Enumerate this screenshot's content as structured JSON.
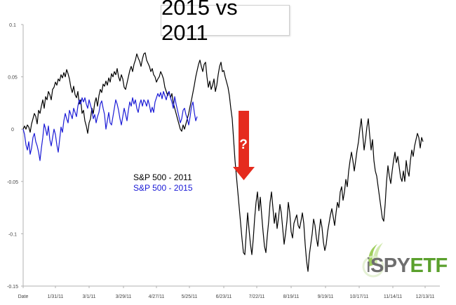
{
  "chart_data": {
    "type": "line",
    "title": "2015 vs 2011",
    "xlabel": "",
    "ylabel": "",
    "x_ticks": [
      "Date",
      "1/31/11",
      "3/1/11",
      "3/29/11",
      "4/27/11",
      "5/25/11",
      "6/23/11",
      "7/22/11",
      "8/19/11",
      "9/19/11",
      "10/17/11",
      "11/14/11",
      "12/13/11"
    ],
    "y_ticks": [
      "0.1",
      "0.05",
      "0",
      "-0.05",
      "-0.1",
      "-0.15"
    ],
    "ylim": [
      -0.15,
      0.1
    ],
    "grid": false,
    "legend_position": "center-left",
    "series": [
      {
        "name": "S&P 500 - 2011",
        "color": "#000000",
        "step": 0.7,
        "start": 0,
        "values": [
          0.0,
          0.003,
          0.0,
          0.004,
          0.002,
          -0.003,
          0.005,
          0.01,
          0.015,
          0.012,
          0.005,
          0.018,
          0.015,
          0.022,
          0.028,
          0.02,
          0.031,
          0.028,
          0.036,
          0.033,
          0.028,
          0.038,
          0.04,
          0.045,
          0.042,
          0.048,
          0.046,
          0.052,
          0.049,
          0.054,
          0.05,
          0.057,
          0.053,
          0.048,
          0.04,
          0.035,
          0.041,
          0.033,
          0.03,
          0.036,
          0.024,
          0.028,
          0.015,
          0.018,
          0.008,
          0.003,
          -0.004,
          0.006,
          0.01,
          0.02,
          0.015,
          0.025,
          0.03,
          0.022,
          0.032,
          0.038,
          0.035,
          0.043,
          0.041,
          0.046,
          0.042,
          0.049,
          0.045,
          0.053,
          0.05,
          0.055,
          0.052,
          0.058,
          0.05,
          0.046,
          0.052,
          0.048,
          0.04,
          0.038,
          0.044,
          0.05,
          0.056,
          0.06,
          0.055,
          0.062,
          0.066,
          0.072,
          0.068,
          0.065,
          0.06,
          0.067,
          0.072,
          0.073,
          0.066,
          0.063,
          0.06,
          0.055,
          0.058,
          0.052,
          0.05,
          0.045,
          0.048,
          0.05,
          0.055,
          0.052,
          0.048,
          0.04,
          0.036,
          0.032,
          0.036,
          0.03,
          0.034,
          0.025,
          0.02,
          0.015,
          0.01,
          0.005,
          0.0,
          -0.002,
          0.004,
          0.0,
          0.005,
          0.01,
          0.015,
          0.022,
          0.028,
          0.035,
          0.042,
          0.05,
          0.056,
          0.062,
          0.066,
          0.06,
          0.055,
          0.062,
          0.064,
          0.05,
          0.04,
          0.046,
          0.038,
          0.042,
          0.048,
          0.036,
          0.042,
          0.052,
          0.06,
          0.064,
          0.055,
          0.056,
          0.05,
          0.045,
          0.04,
          0.032,
          0.02,
          0.01,
          -0.01,
          -0.03,
          -0.045,
          -0.06,
          -0.075,
          -0.09,
          -0.105,
          -0.118,
          -0.12,
          -0.1,
          -0.08,
          -0.096,
          -0.11,
          -0.12,
          -0.105,
          -0.085,
          -0.07,
          -0.06,
          -0.078,
          -0.065,
          -0.082,
          -0.098,
          -0.112,
          -0.118,
          -0.102,
          -0.088,
          -0.07,
          -0.06,
          -0.075,
          -0.09,
          -0.08,
          -0.095,
          -0.085,
          -0.072,
          -0.08,
          -0.095,
          -0.11,
          -0.1,
          -0.088,
          -0.07,
          -0.08,
          -0.098,
          -0.104,
          -0.09,
          -0.086,
          -0.082,
          -0.092,
          -0.095,
          -0.088,
          -0.08,
          -0.09,
          -0.11,
          -0.126,
          -0.136,
          -0.12,
          -0.11,
          -0.1,
          -0.086,
          -0.092,
          -0.104,
          -0.112,
          -0.098,
          -0.086,
          -0.094,
          -0.108,
          -0.116,
          -0.11,
          -0.098,
          -0.09,
          -0.082,
          -0.076,
          -0.084,
          -0.092,
          -0.08,
          -0.07,
          -0.075,
          -0.06,
          -0.055,
          -0.068,
          -0.06,
          -0.048,
          -0.055,
          -0.04,
          -0.03,
          -0.022,
          -0.03,
          -0.04,
          -0.03,
          -0.02,
          -0.012,
          0.0,
          0.01,
          -0.005,
          -0.02,
          -0.01,
          0.002,
          0.01,
          -0.006,
          -0.02,
          -0.01,
          -0.03,
          -0.04,
          -0.045,
          -0.055,
          -0.065,
          -0.075,
          -0.085,
          -0.088,
          -0.072,
          -0.05,
          -0.035,
          -0.045,
          -0.052,
          -0.04,
          -0.03,
          -0.022,
          -0.032,
          -0.026,
          -0.036,
          -0.046,
          -0.05,
          -0.04,
          -0.05,
          -0.03,
          -0.04,
          -0.045,
          -0.03,
          -0.02,
          -0.026,
          -0.016,
          -0.01,
          -0.004,
          -0.008,
          -0.018,
          -0.008,
          -0.012
        ]
      },
      {
        "name": "S&P 500 - 2015",
        "color": "#1a1ad6",
        "step": 0.7,
        "start": 0,
        "values": [
          0.0,
          -0.005,
          -0.015,
          -0.02,
          -0.012,
          -0.024,
          -0.018,
          -0.008,
          -0.004,
          -0.012,
          -0.016,
          -0.022,
          -0.03,
          -0.018,
          -0.008,
          0.005,
          0.0,
          -0.006,
          0.003,
          -0.01,
          -0.016,
          -0.008,
          0.0,
          -0.005,
          -0.015,
          -0.022,
          -0.01,
          0.002,
          -0.003,
          0.008,
          0.015,
          0.01,
          0.006,
          0.018,
          0.014,
          0.01,
          0.02,
          0.016,
          0.012,
          0.022,
          0.028,
          0.024,
          0.03,
          0.026,
          0.03,
          0.024,
          0.02,
          0.028,
          0.023,
          0.018,
          0.01,
          0.014,
          0.006,
          0.012,
          0.016,
          0.024,
          0.027,
          0.02,
          0.014,
          0.0,
          0.008,
          0.016,
          0.006,
          0.004,
          0.012,
          0.02,
          0.028,
          0.024,
          0.018,
          0.01,
          0.004,
          0.012,
          0.02,
          0.014,
          0.008,
          0.018,
          0.026,
          0.022,
          0.03,
          0.024,
          0.028,
          0.02,
          0.016,
          0.024,
          0.028,
          0.022,
          0.028,
          0.026,
          0.022,
          0.028,
          0.023,
          0.016,
          0.021,
          0.016,
          0.026,
          0.03,
          0.034,
          0.031,
          0.035,
          0.029,
          0.036,
          0.032,
          0.028,
          0.034,
          0.036,
          0.03,
          0.026,
          0.02,
          0.031,
          0.024,
          0.018,
          0.012,
          0.006,
          0.01,
          0.018,
          0.02,
          0.014,
          0.01,
          0.004,
          0.012,
          0.022,
          0.026,
          0.016,
          0.008,
          0.012
        ]
      }
    ],
    "legend": [
      "S&P 500 - 2011",
      "S&P 500 - 2015"
    ],
    "annotations": [
      {
        "type": "down-arrow",
        "label": "?",
        "color": "#e52b1e"
      }
    ]
  },
  "logo": {
    "i": "i",
    "spy": "SPY",
    "etf": "ETF"
  }
}
